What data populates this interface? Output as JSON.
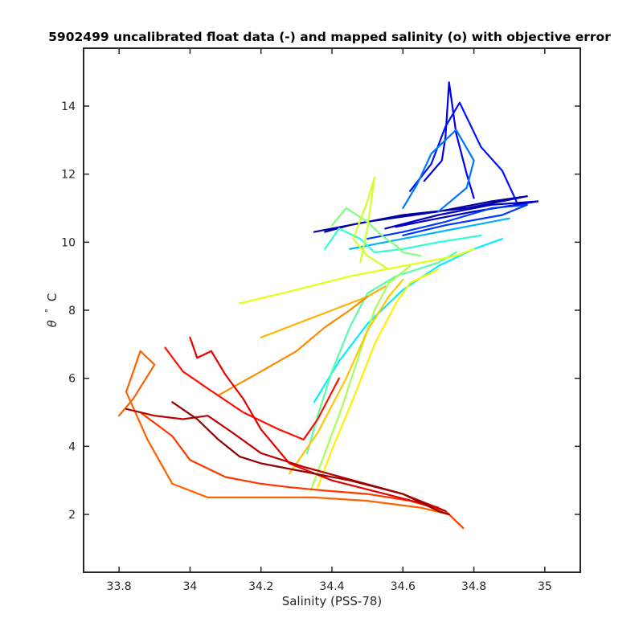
{
  "chart_data": {
    "type": "line",
    "title": "5902499 uncalibrated float data (-) and mapped salinity (o) with objective error",
    "xlabel": "Salinity (PSS-78)",
    "ylabel_symbol": "θ",
    "ylabel_degree": "°",
    "ylabel_unit": "C",
    "xlim": [
      33.7,
      35.1
    ],
    "ylim": [
      0.3,
      15.7
    ],
    "xticks": [
      "33.8",
      "34",
      "34.2",
      "34.4",
      "34.6",
      "34.8",
      "35"
    ],
    "xtick_values": [
      33.8,
      34.0,
      34.2,
      34.4,
      34.6,
      34.8,
      35.0
    ],
    "yticks": [
      "2",
      "4",
      "6",
      "8",
      "10",
      "12",
      "14"
    ],
    "ytick_values": [
      2,
      4,
      6,
      8,
      10,
      12,
      14
    ],
    "grid": false,
    "colormap": "jet",
    "colormap_stops": [
      "#00008f",
      "#0000ff",
      "#00ffff",
      "#ffff00",
      "#ff0000",
      "#800000"
    ],
    "series": [
      {
        "color_index": 0.02,
        "x": [
          34.35,
          34.5,
          34.7,
          34.85,
          34.95,
          34.78,
          34.6,
          34.45,
          34.38
        ],
        "y": [
          10.3,
          10.6,
          10.9,
          11.2,
          11.35,
          11.0,
          10.8,
          10.5,
          10.3
        ]
      },
      {
        "color_index": 0.06,
        "x": [
          34.55,
          34.7,
          34.85,
          34.98,
          34.8,
          34.65,
          34.58
        ],
        "y": [
          10.4,
          10.8,
          11.1,
          11.2,
          10.9,
          10.6,
          10.45
        ]
      },
      {
        "color_index": 0.1,
        "x": [
          34.66,
          34.71,
          34.72,
          34.73,
          34.75,
          34.78,
          34.8
        ],
        "y": [
          11.8,
          12.4,
          13.1,
          14.7,
          13.2,
          12.0,
          11.3
        ]
      },
      {
        "color_index": 0.14,
        "x": [
          34.62,
          34.68,
          34.72,
          34.76,
          34.82,
          34.88,
          34.92
        ],
        "y": [
          11.5,
          12.3,
          13.4,
          14.1,
          12.8,
          12.1,
          11.2
        ]
      },
      {
        "color_index": 0.18,
        "x": [
          34.5,
          34.6,
          34.72,
          34.85,
          34.95,
          34.88,
          34.72,
          34.6
        ],
        "y": [
          10.1,
          10.3,
          10.6,
          11.0,
          11.1,
          10.8,
          10.5,
          10.2
        ]
      },
      {
        "color_index": 0.24,
        "x": [
          34.6,
          34.64,
          34.68,
          34.75,
          34.8,
          34.78,
          34.7
        ],
        "y": [
          11.0,
          11.7,
          12.6,
          13.3,
          12.4,
          11.6,
          10.9
        ]
      },
      {
        "color_index": 0.3,
        "x": [
          34.45,
          34.55,
          34.65,
          34.75,
          34.85,
          34.9
        ],
        "y": [
          9.8,
          10.0,
          10.2,
          10.4,
          10.6,
          10.7
        ]
      },
      {
        "color_index": 0.36,
        "x": [
          34.35,
          34.42,
          34.5,
          34.6,
          34.7,
          34.8,
          34.88
        ],
        "y": [
          5.3,
          6.5,
          7.6,
          8.6,
          9.3,
          9.8,
          10.1
        ]
      },
      {
        "color_index": 0.42,
        "x": [
          34.38,
          34.42,
          34.48,
          34.52,
          34.6,
          34.7,
          34.82
        ],
        "y": [
          9.8,
          10.4,
          10.1,
          9.7,
          9.8,
          10.0,
          10.2
        ]
      },
      {
        "color_index": 0.46,
        "x": [
          34.33,
          34.36,
          34.4,
          34.45,
          34.5,
          34.58,
          34.7,
          34.75
        ],
        "y": [
          3.8,
          4.9,
          6.2,
          7.5,
          8.5,
          9.0,
          9.4,
          9.7
        ]
      },
      {
        "color_index": 0.5,
        "x": [
          34.4,
          34.44,
          34.5,
          34.54,
          34.58,
          34.6,
          34.65
        ],
        "y": [
          10.5,
          11.0,
          10.6,
          10.2,
          9.9,
          9.7,
          9.6
        ]
      },
      {
        "color_index": 0.54,
        "x": [
          34.34,
          34.38,
          34.43,
          34.48,
          34.52,
          34.56,
          34.62
        ],
        "y": [
          2.7,
          3.8,
          5.2,
          6.8,
          8.0,
          8.8,
          9.3
        ]
      },
      {
        "color_index": 0.58,
        "x": [
          34.48,
          34.5,
          34.52,
          34.5,
          34.46,
          34.5,
          34.56
        ],
        "y": [
          9.4,
          10.4,
          11.9,
          11.2,
          10.1,
          9.6,
          9.2
        ]
      },
      {
        "color_index": 0.6,
        "x": [
          34.14,
          34.3,
          34.45,
          34.6,
          34.75,
          34.8
        ],
        "y": [
          8.2,
          8.6,
          9.0,
          9.3,
          9.6,
          9.8
        ]
      },
      {
        "color_index": 0.64,
        "x": [
          34.36,
          34.4,
          34.46,
          34.52,
          34.58,
          34.62,
          34.7
        ],
        "y": [
          2.8,
          3.9,
          5.4,
          7.0,
          8.2,
          8.8,
          9.2
        ]
      },
      {
        "color_index": 0.68,
        "x": [
          34.28,
          34.36,
          34.44,
          34.5,
          34.56,
          34.6
        ],
        "y": [
          3.2,
          4.4,
          6.0,
          7.4,
          8.4,
          8.9
        ]
      },
      {
        "color_index": 0.7,
        "x": [
          34.2,
          34.3,
          34.4,
          34.5,
          34.55
        ],
        "y": [
          7.2,
          7.6,
          8.0,
          8.4,
          8.7
        ]
      },
      {
        "color_index": 0.74,
        "x": [
          34.08,
          34.2,
          34.3,
          34.38,
          34.45,
          34.5
        ],
        "y": [
          5.5,
          6.2,
          6.8,
          7.5,
          8.0,
          8.4
        ]
      },
      {
        "color_index": 0.78,
        "x": [
          33.8,
          33.84,
          33.9,
          33.86,
          33.82,
          33.88,
          33.95,
          34.05,
          34.2,
          34.35,
          34.5,
          34.65,
          34.73
        ],
        "y": [
          4.9,
          5.4,
          6.4,
          6.8,
          5.6,
          4.2,
          2.9,
          2.5,
          2.5,
          2.5,
          2.4,
          2.2,
          2.0
        ]
      },
      {
        "color_index": 0.82,
        "x": [
          33.86,
          33.95,
          34.0,
          34.1,
          34.2,
          34.28,
          34.38,
          34.5,
          34.62,
          34.72,
          34.77
        ],
        "y": [
          5.0,
          4.3,
          3.6,
          3.1,
          2.9,
          2.8,
          2.7,
          2.6,
          2.4,
          2.1,
          1.6
        ]
      },
      {
        "color_index": 0.86,
        "x": [
          33.93,
          33.98,
          34.05,
          34.15,
          34.25,
          34.32,
          34.36,
          34.42
        ],
        "y": [
          6.9,
          6.2,
          5.7,
          5.0,
          4.5,
          4.2,
          4.8,
          6.0
        ]
      },
      {
        "color_index": 0.9,
        "x": [
          34.0,
          34.02,
          34.06,
          34.1,
          34.15,
          34.2,
          34.28,
          34.4,
          34.55,
          34.7
        ],
        "y": [
          7.2,
          6.6,
          6.8,
          6.1,
          5.4,
          4.5,
          3.5,
          3.0,
          2.6,
          2.2
        ]
      },
      {
        "color_index": 0.94,
        "x": [
          33.82,
          33.9,
          33.98,
          34.05,
          34.12,
          34.2,
          34.32,
          34.46,
          34.6,
          34.72
        ],
        "y": [
          5.1,
          4.9,
          4.8,
          4.9,
          4.4,
          3.8,
          3.4,
          3.0,
          2.6,
          2.1
        ]
      },
      {
        "color_index": 0.98,
        "x": [
          33.95,
          34.02,
          34.08,
          34.14,
          34.2,
          34.3,
          34.45,
          34.6,
          34.7,
          34.73
        ],
        "y": [
          5.3,
          4.8,
          4.2,
          3.7,
          3.5,
          3.3,
          3.0,
          2.6,
          2.1,
          2.0
        ]
      }
    ]
  }
}
